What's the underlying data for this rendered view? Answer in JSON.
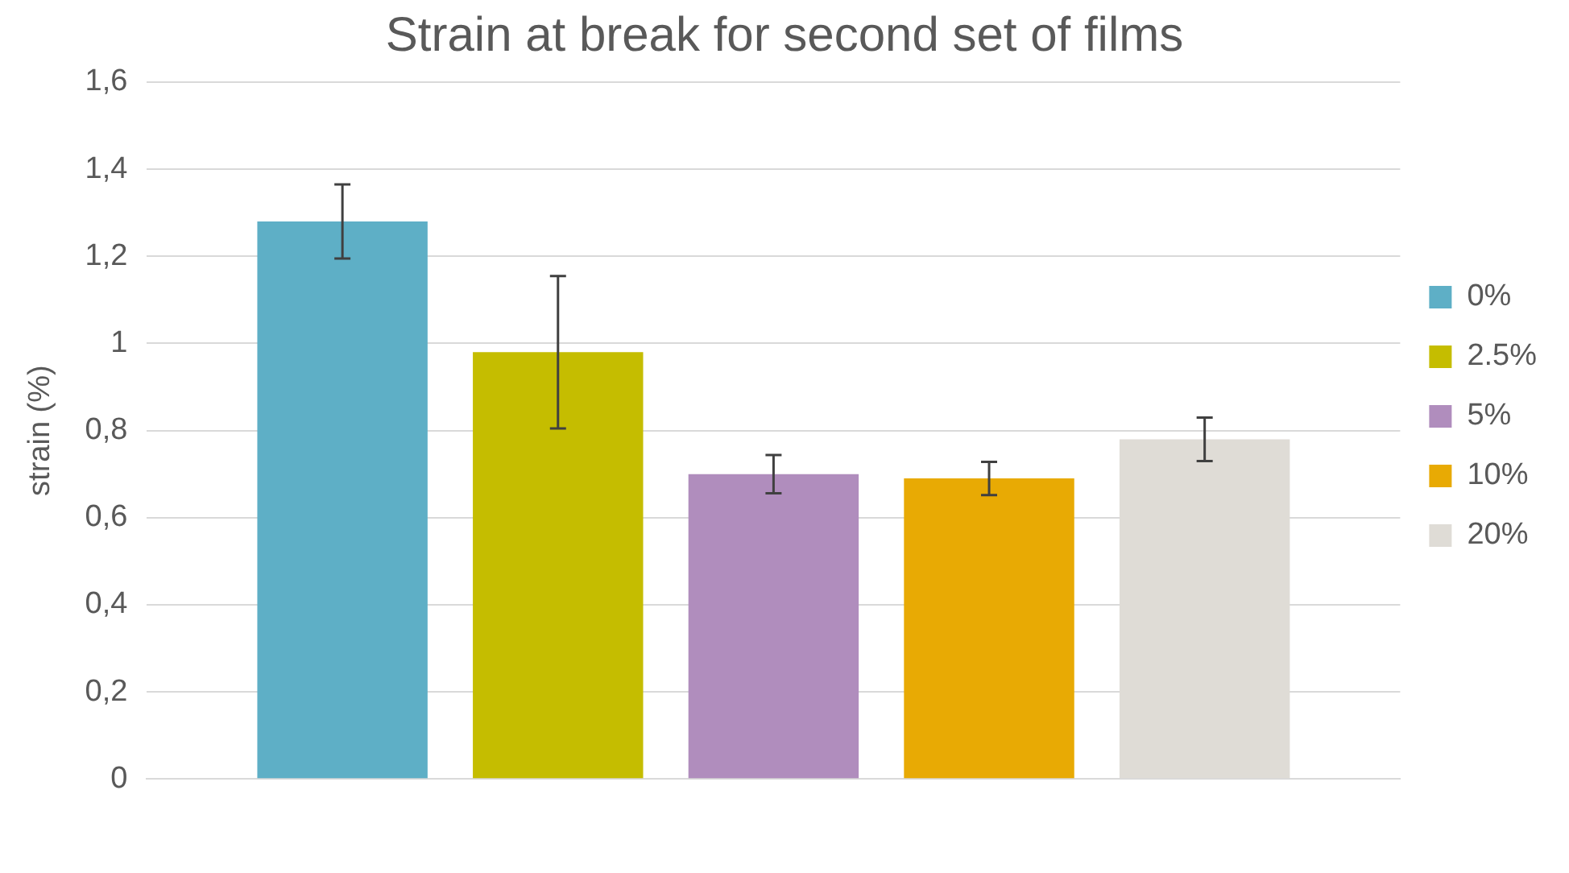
{
  "chart_data": {
    "type": "bar",
    "title": "Strain at break for second set of films",
    "ylabel": "strain (%)",
    "categories": [
      null
    ],
    "series": [
      {
        "name": "0%",
        "color": "#5eafc6",
        "values": [
          1.28
        ],
        "errors": [
          0.085
        ]
      },
      {
        "name": "2.5%",
        "color": "#c5bd00",
        "values": [
          0.98
        ],
        "errors": [
          0.175
        ]
      },
      {
        "name": "5%",
        "color": "#b08dbd",
        "values": [
          0.7
        ],
        "errors": [
          0.044
        ]
      },
      {
        "name": "10%",
        "color": "#e8aa04",
        "values": [
          0.69
        ],
        "errors": [
          0.038
        ]
      },
      {
        "name": "20%",
        "color": "#dfdcd6",
        "values": [
          0.78
        ],
        "errors": [
          0.05
        ]
      }
    ],
    "ylim": [
      0,
      1.6
    ],
    "yticks": [
      0,
      {
        "value": 0.2,
        "label": "0,2"
      },
      {
        "value": 0.4,
        "label": "0,4"
      },
      {
        "value": 0.6,
        "label": "0,6"
      },
      {
        "value": 0.8,
        "label": "0,8"
      },
      1,
      {
        "value": 1.2,
        "label": "1,2"
      },
      {
        "value": 1.4,
        "label": "1,4"
      },
      {
        "value": 1.6,
        "label": "1,6"
      }
    ],
    "grid": "y",
    "legend": "right"
  }
}
